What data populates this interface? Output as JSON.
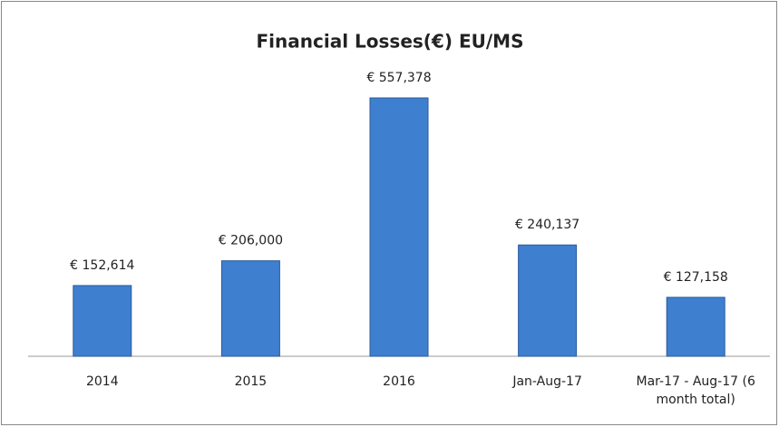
{
  "chart_data": {
    "type": "bar",
    "title": "Financial Losses(€) EU/MS",
    "categories": [
      "2014",
      "2015",
      "2016",
      "Jan-Aug-17",
      "Mar-17 - Aug-17 (6 month total)"
    ],
    "values": [
      152614,
      206000,
      557378,
      240137,
      127158
    ],
    "value_labels": [
      "€ 152,614",
      "€ 206,000",
      "€ 557,378",
      "€ 240,137",
      "€ 127,158"
    ],
    "color": "#3f7fd0"
  }
}
